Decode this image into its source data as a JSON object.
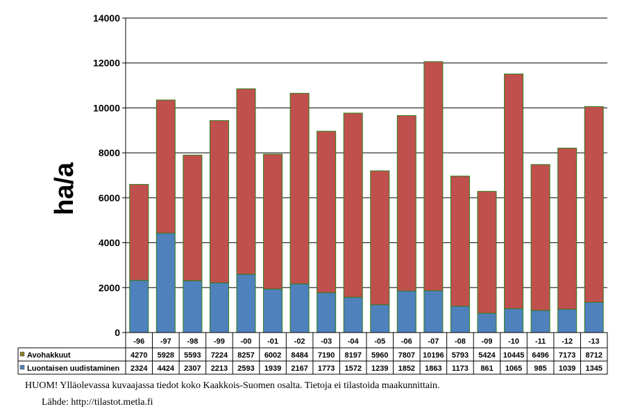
{
  "chart_data": {
    "type": "bar",
    "stacked": true,
    "ylabel": "ha/a",
    "ylim": [
      0,
      14000
    ],
    "yticks": [
      0,
      2000,
      4000,
      6000,
      8000,
      10000,
      12000,
      14000
    ],
    "grid": true,
    "categories": [
      "-96",
      "-97",
      "-98",
      "-99",
      "-00",
      "-01",
      "-02",
      "-03",
      "-04",
      "-05",
      "-06",
      "-07",
      "-08",
      "-09",
      "-10",
      "-11",
      "-12",
      "-13"
    ],
    "series": [
      {
        "name": "Luontaisen uudistaminen",
        "color": "#4f81bd",
        "values": [
          2324,
          4424,
          2307,
          2213,
          2593,
          1939,
          2167,
          1773,
          1572,
          1239,
          1852,
          1863,
          1173,
          861,
          1065,
          985,
          1039,
          1345
        ]
      },
      {
        "name": "Avohakkuut",
        "color": "#c0504d",
        "values": [
          4270,
          5928,
          5593,
          7224,
          8257,
          6002,
          8484,
          7190,
          8197,
          5960,
          7807,
          10196,
          5793,
          5424,
          10445,
          6496,
          7173,
          8712
        ]
      }
    ],
    "table_rows": [
      {
        "label": "Avohakkuut",
        "marker_color": "#8b7d2a",
        "series_index": 1
      },
      {
        "label": "Luontaisen uudistaminen",
        "marker_color": "#4f81bd",
        "series_index": 0
      }
    ]
  },
  "notes": {
    "note": "HUOM! Ylläolevassa kuvaajassa tiedot koko Kaakkois-Suomen  osalta. Tietoja ei tilastoida maakunnittain.",
    "source": "Lähde: http://tilastot.metla.fi"
  }
}
